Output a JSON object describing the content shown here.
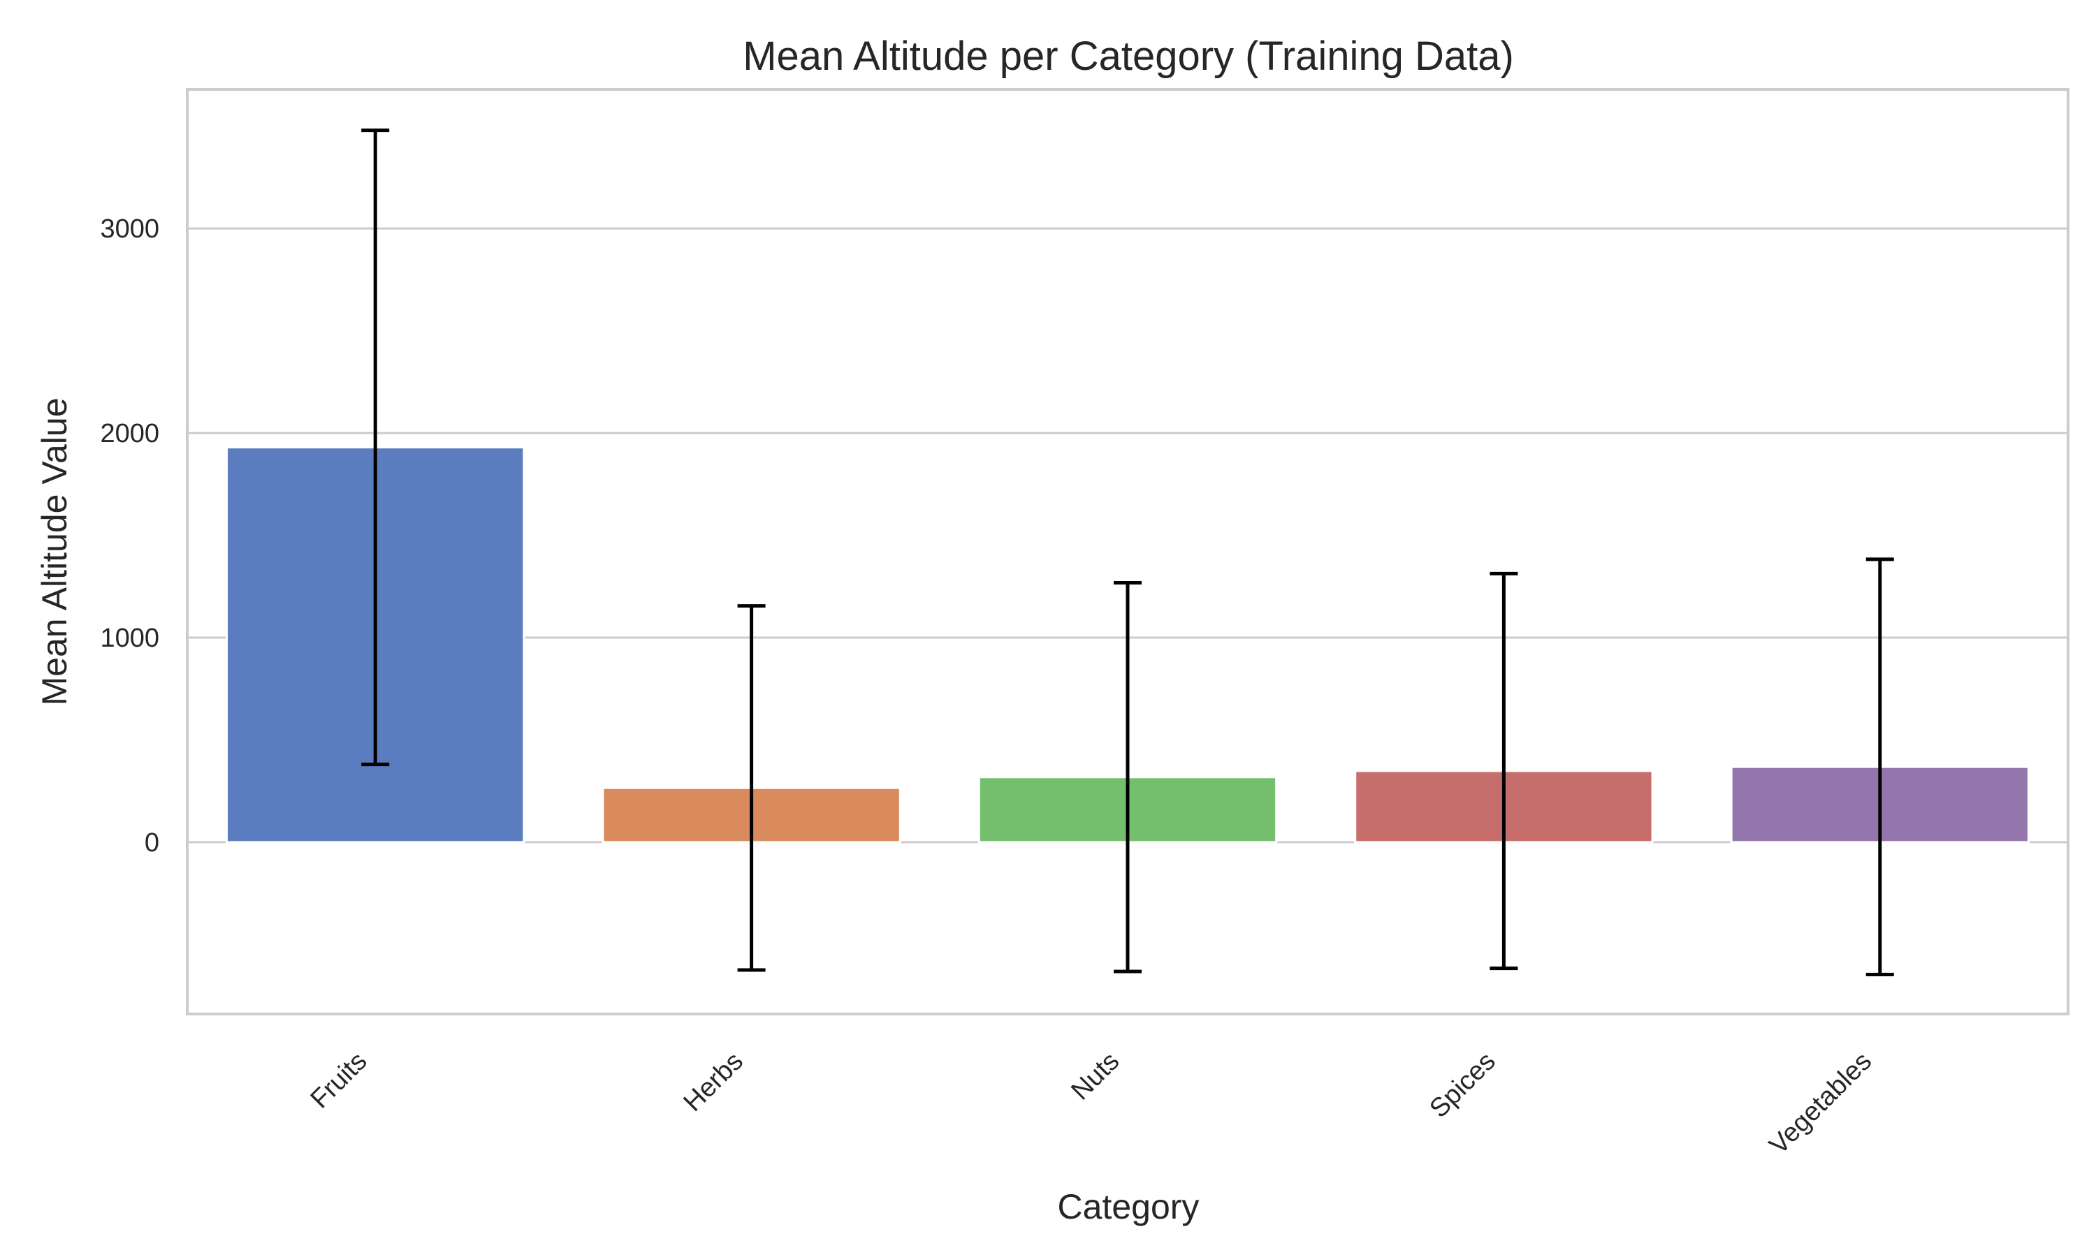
{
  "chart_data": {
    "type": "bar",
    "title": "Mean Altitude per Category (Training Data)",
    "xlabel": "Category",
    "ylabel": "Mean Altitude Value",
    "categories": [
      "Fruits",
      "Herbs",
      "Nuts",
      "Spices",
      "Vegetables"
    ],
    "values": [
      1930,
      265,
      318,
      348,
      368
    ],
    "error": [
      1550,
      890,
      950,
      965,
      1015
    ],
    "colors": [
      "#5b7dc0",
      "#d98b5d",
      "#74bf6e",
      "#c66e6c",
      "#9376ac"
    ],
    "ylim": [
      -840,
      3680
    ],
    "yticks": [
      0,
      1000,
      2000,
      3000
    ],
    "grid": true
  }
}
